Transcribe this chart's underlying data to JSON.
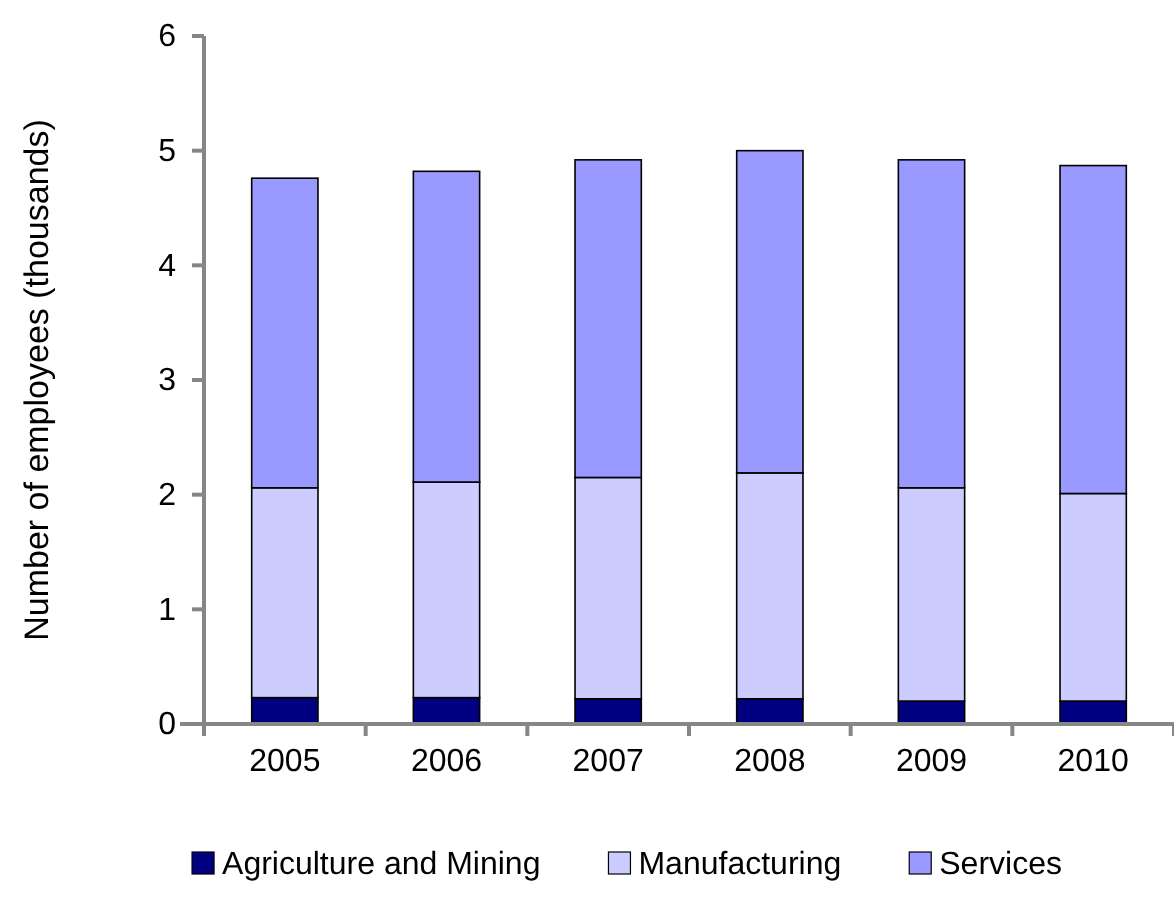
{
  "chart_data": {
    "type": "bar",
    "stacked": true,
    "ylabel": "Number of employees (thousands)",
    "categories": [
      "2005",
      "2006",
      "2007",
      "2008",
      "2009",
      "2010"
    ],
    "series": [
      {
        "name": "Agriculture and Mining",
        "color": "#000080",
        "values": [
          0.23,
          0.23,
          0.22,
          0.22,
          0.2,
          0.2
        ]
      },
      {
        "name": "Manufacturing",
        "color": "#ccccff",
        "values": [
          1.83,
          1.88,
          1.93,
          1.97,
          1.86,
          1.81
        ]
      },
      {
        "name": "Services",
        "color": "#9999ff",
        "values": [
          2.7,
          2.71,
          2.77,
          2.81,
          2.86,
          2.86
        ]
      }
    ],
    "ylim": [
      0,
      6
    ],
    "yticks": [
      0,
      1,
      2,
      3,
      4,
      5,
      6
    ],
    "grid": false,
    "legend": "bottom"
  }
}
